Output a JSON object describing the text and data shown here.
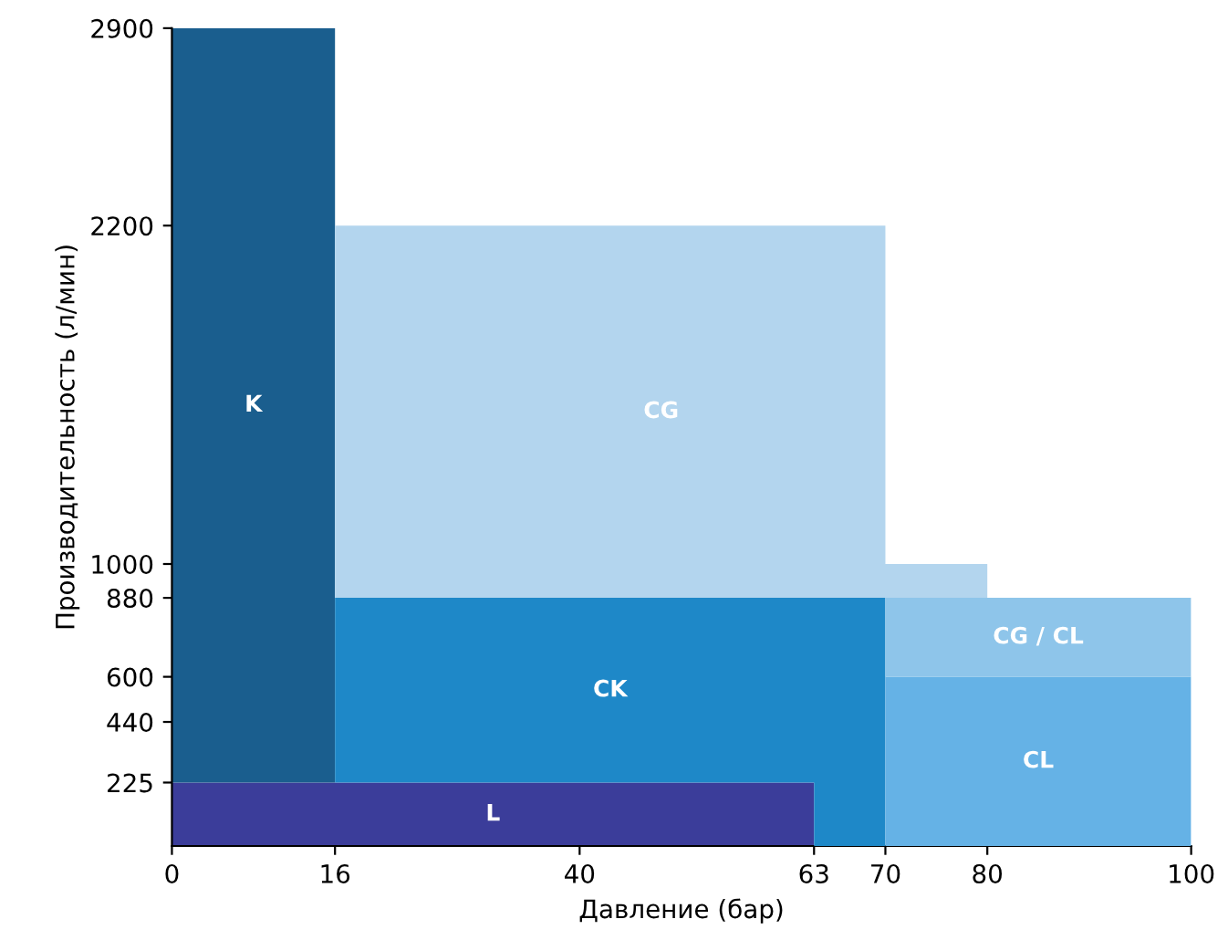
{
  "chart_data": {
    "type": "area",
    "stacked": true,
    "xlabel": "Давление (бар)",
    "ylabel": "Производительность (л/мин)",
    "x": [
      0,
      16,
      16,
      63,
      63,
      70,
      70,
      80,
      80,
      100
    ],
    "xlim": [
      0,
      100
    ],
    "ylim": [
      0,
      2900
    ],
    "xticks": [
      0,
      16,
      40,
      63,
      70,
      80,
      100
    ],
    "yticks": [
      225,
      440,
      600,
      880,
      1000,
      2200,
      2900
    ],
    "grid": false,
    "legend": false,
    "series": [
      {
        "name": "L",
        "color": "#3b3d9a",
        "values": [
          225,
          225,
          225,
          225,
          null,
          null,
          null,
          null,
          null,
          null
        ]
      },
      {
        "name": "K",
        "color": "#1a5e8e",
        "values": [
          2675,
          2675,
          null,
          null,
          null,
          null,
          null,
          null,
          null,
          null
        ]
      },
      {
        "name": "CK",
        "color": "#1e88c8",
        "values": [
          null,
          null,
          655,
          655,
          880,
          880,
          null,
          null,
          null,
          null
        ]
      },
      {
        "name": "CL",
        "color": "#65b2e6",
        "values": [
          null,
          null,
          null,
          null,
          null,
          null,
          600,
          600,
          600,
          600
        ]
      },
      {
        "name": "CG / CL",
        "color": "#8ec5ea",
        "values": [
          null,
          null,
          null,
          null,
          null,
          null,
          280,
          280,
          280,
          280
        ]
      },
      {
        "name": "CG",
        "color": "#b3d5ee",
        "values": [
          null,
          null,
          1320,
          1320,
          1320,
          1320,
          120,
          120,
          null,
          null
        ]
      }
    ]
  }
}
